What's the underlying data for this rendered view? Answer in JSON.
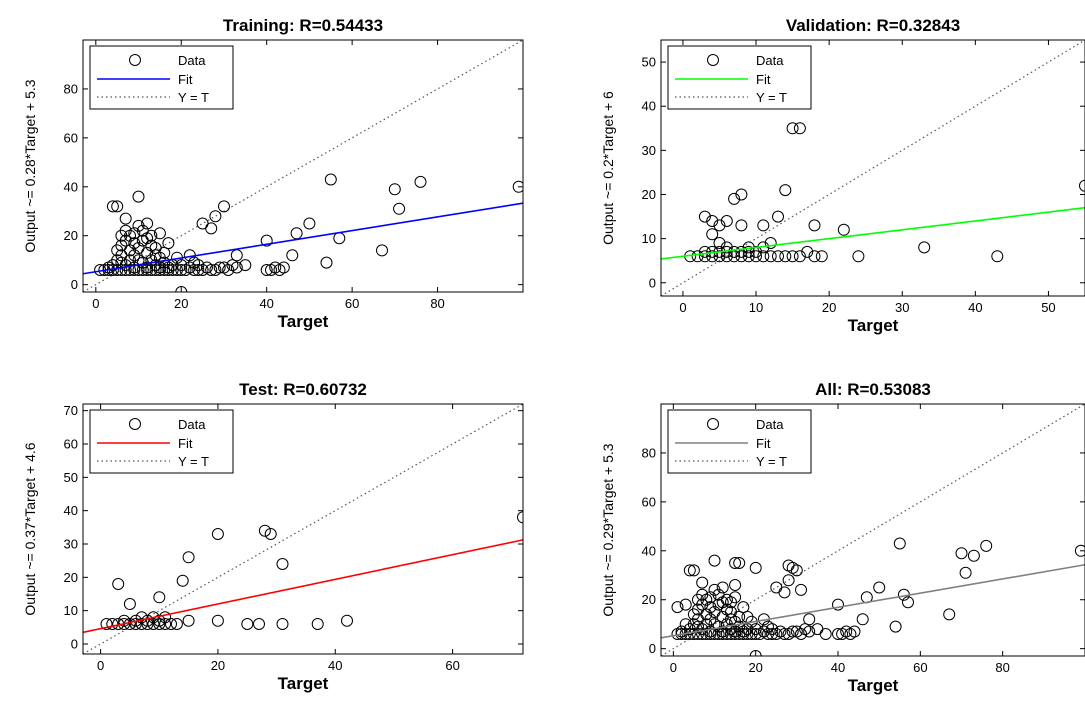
{
  "chart_data": [
    {
      "type": "scatter",
      "title": "Training: R=0.54433",
      "xlabel": "Target",
      "ylabel": "Output ~= 0.28*Target + 5.3",
      "xlim": [
        -3,
        100
      ],
      "ylim": [
        -3,
        100
      ],
      "xticks": [
        0,
        20,
        40,
        60,
        80
      ],
      "yticks": [
        0,
        20,
        40,
        60,
        80
      ],
      "grid": false,
      "legend_position": "top-left",
      "legend": [
        "Data",
        "Fit",
        "Y = T"
      ],
      "fit": {
        "slope": 0.28,
        "intercept": 5.3,
        "color": "#0000ff"
      },
      "points": [
        [
          1,
          6
        ],
        [
          2,
          6
        ],
        [
          3,
          6
        ],
        [
          3,
          7
        ],
        [
          4,
          6
        ],
        [
          4,
          8
        ],
        [
          4,
          32
        ],
        [
          5,
          6
        ],
        [
          5,
          10
        ],
        [
          5,
          14
        ],
        [
          5,
          32
        ],
        [
          6,
          6
        ],
        [
          6,
          9
        ],
        [
          6,
          12
        ],
        [
          6,
          16
        ],
        [
          6,
          20
        ],
        [
          7,
          6
        ],
        [
          7,
          8
        ],
        [
          7,
          18
        ],
        [
          7,
          22
        ],
        [
          7,
          27
        ],
        [
          8,
          6
        ],
        [
          8,
          10
        ],
        [
          8,
          14
        ],
        [
          8,
          20
        ],
        [
          9,
          6
        ],
        [
          9,
          7
        ],
        [
          9,
          12
        ],
        [
          9,
          17
        ],
        [
          9,
          21
        ],
        [
          10,
          6
        ],
        [
          10,
          10
        ],
        [
          10,
          15
        ],
        [
          10,
          24
        ],
        [
          10,
          36
        ],
        [
          11,
          6
        ],
        [
          11,
          9
        ],
        [
          11,
          18
        ],
        [
          11,
          22
        ],
        [
          12,
          6
        ],
        [
          12,
          7
        ],
        [
          12,
          13
        ],
        [
          12,
          19
        ],
        [
          12,
          25
        ],
        [
          13,
          6
        ],
        [
          13,
          10
        ],
        [
          13,
          16
        ],
        [
          13,
          20
        ],
        [
          14,
          6
        ],
        [
          14,
          8
        ],
        [
          14,
          12
        ],
        [
          14,
          15
        ],
        [
          15,
          6
        ],
        [
          15,
          7
        ],
        [
          15,
          11
        ],
        [
          15,
          21
        ],
        [
          16,
          6
        ],
        [
          16,
          9
        ],
        [
          16,
          13
        ],
        [
          17,
          6
        ],
        [
          17,
          7
        ],
        [
          17,
          17
        ],
        [
          18,
          6
        ],
        [
          18,
          8
        ],
        [
          19,
          6
        ],
        [
          19,
          11
        ],
        [
          20,
          -3
        ],
        [
          20,
          6
        ],
        [
          20,
          8
        ],
        [
          21,
          6
        ],
        [
          22,
          7
        ],
        [
          22,
          12
        ],
        [
          23,
          6
        ],
        [
          23,
          9
        ],
        [
          24,
          6
        ],
        [
          24,
          8
        ],
        [
          25,
          6
        ],
        [
          25,
          25
        ],
        [
          26,
          7
        ],
        [
          27,
          6
        ],
        [
          27,
          23
        ],
        [
          28,
          6
        ],
        [
          28,
          28
        ],
        [
          29,
          7
        ],
        [
          30,
          7
        ],
        [
          30,
          32
        ],
        [
          31,
          6
        ],
        [
          32,
          8
        ],
        [
          33,
          7
        ],
        [
          33,
          12
        ],
        [
          35,
          8
        ],
        [
          40,
          6
        ],
        [
          40,
          18
        ],
        [
          41,
          6
        ],
        [
          42,
          7
        ],
        [
          43,
          6
        ],
        [
          44,
          7
        ],
        [
          46,
          12
        ],
        [
          47,
          21
        ],
        [
          50,
          25
        ],
        [
          54,
          9
        ],
        [
          55,
          43
        ],
        [
          57,
          19
        ],
        [
          67,
          14
        ],
        [
          70,
          39
        ],
        [
          71,
          31
        ],
        [
          76,
          42
        ],
        [
          99,
          40
        ]
      ]
    },
    {
      "type": "scatter",
      "title": "Validation: R=0.32843",
      "xlabel": "Target",
      "ylabel": "Output ~= 0.2*Target + 6",
      "xlim": [
        -3,
        55
      ],
      "ylim": [
        -3,
        55
      ],
      "xticks": [
        0,
        10,
        20,
        30,
        40,
        50
      ],
      "yticks": [
        0,
        10,
        20,
        30,
        40,
        50
      ],
      "grid": false,
      "legend_position": "top-left",
      "legend": [
        "Data",
        "Fit",
        "Y = T"
      ],
      "fit": {
        "slope": 0.2,
        "intercept": 6,
        "color": "#00ff00"
      },
      "points": [
        [
          1,
          6
        ],
        [
          2,
          6
        ],
        [
          3,
          6
        ],
        [
          3,
          7
        ],
        [
          3,
          15
        ],
        [
          4,
          6
        ],
        [
          4,
          7
        ],
        [
          4,
          11
        ],
        [
          4,
          14
        ],
        [
          5,
          6
        ],
        [
          5,
          7
        ],
        [
          5,
          9
        ],
        [
          5,
          13
        ],
        [
          6,
          6
        ],
        [
          6,
          7
        ],
        [
          6,
          8
        ],
        [
          6,
          14
        ],
        [
          7,
          6
        ],
        [
          7,
          7
        ],
        [
          7,
          19
        ],
        [
          8,
          6
        ],
        [
          8,
          7
        ],
        [
          8,
          20
        ],
        [
          8,
          13
        ],
        [
          9,
          6
        ],
        [
          9,
          7
        ],
        [
          9,
          8
        ],
        [
          10,
          6
        ],
        [
          10,
          7
        ],
        [
          11,
          6
        ],
        [
          11,
          8
        ],
        [
          11,
          13
        ],
        [
          12,
          6
        ],
        [
          12,
          9
        ],
        [
          13,
          6
        ],
        [
          13,
          15
        ],
        [
          14,
          6
        ],
        [
          14,
          21
        ],
        [
          15,
          6
        ],
        [
          15,
          35
        ],
        [
          16,
          6
        ],
        [
          16,
          35
        ],
        [
          17,
          7
        ],
        [
          18,
          6
        ],
        [
          18,
          13
        ],
        [
          19,
          6
        ],
        [
          22,
          12
        ],
        [
          24,
          6
        ],
        [
          33,
          8
        ],
        [
          43,
          6
        ],
        [
          55,
          22
        ]
      ]
    },
    {
      "type": "scatter",
      "title": "Test: R=0.60732",
      "xlabel": "Target",
      "ylabel": "Output ~= 0.37*Target + 4.6",
      "xlim": [
        -3,
        72
      ],
      "ylim": [
        -3,
        72
      ],
      "xticks": [
        0,
        20,
        40,
        60
      ],
      "yticks": [
        0,
        10,
        20,
        30,
        40,
        50,
        60,
        70
      ],
      "grid": false,
      "legend_position": "top-left",
      "legend": [
        "Data",
        "Fit",
        "Y = T"
      ],
      "fit": {
        "slope": 0.37,
        "intercept": 4.6,
        "color": "#ff0000"
      },
      "points": [
        [
          1,
          6
        ],
        [
          2,
          6
        ],
        [
          3,
          6
        ],
        [
          3,
          18
        ],
        [
          4,
          6
        ],
        [
          4,
          7
        ],
        [
          5,
          6
        ],
        [
          5,
          12
        ],
        [
          6,
          6
        ],
        [
          6,
          7
        ],
        [
          7,
          6
        ],
        [
          7,
          8
        ],
        [
          8,
          6
        ],
        [
          8,
          7
        ],
        [
          9,
          6
        ],
        [
          9,
          8
        ],
        [
          10,
          6
        ],
        [
          10,
          7
        ],
        [
          10,
          14
        ],
        [
          11,
          6
        ],
        [
          11,
          8
        ],
        [
          12,
          6
        ],
        [
          13,
          6
        ],
        [
          14,
          19
        ],
        [
          15,
          7
        ],
        [
          15,
          26
        ],
        [
          20,
          7
        ],
        [
          20,
          33
        ],
        [
          25,
          6
        ],
        [
          27,
          6
        ],
        [
          28,
          34
        ],
        [
          29,
          33
        ],
        [
          31,
          6
        ],
        [
          31,
          24
        ],
        [
          37,
          6
        ],
        [
          42,
          7
        ],
        [
          72,
          38
        ]
      ]
    },
    {
      "type": "scatter",
      "title": "All: R=0.53083",
      "xlabel": "Target",
      "ylabel": "Output ~= 0.29*Target + 5.3",
      "xlim": [
        -3,
        100
      ],
      "ylim": [
        -3,
        100
      ],
      "xticks": [
        0,
        20,
        40,
        60,
        80
      ],
      "yticks": [
        0,
        20,
        40,
        60,
        80
      ],
      "grid": false,
      "legend_position": "top-left",
      "legend": [
        "Data",
        "Fit",
        "Y = T"
      ],
      "fit": {
        "slope": 0.29,
        "intercept": 5.3,
        "color": "#808080"
      },
      "points": [
        [
          1,
          6
        ],
        [
          1,
          17
        ],
        [
          2,
          6
        ],
        [
          2,
          7
        ],
        [
          3,
          6
        ],
        [
          3,
          10
        ],
        [
          3,
          18
        ],
        [
          4,
          6
        ],
        [
          4,
          8
        ],
        [
          4,
          32
        ],
        [
          5,
          6
        ],
        [
          5,
          10
        ],
        [
          5,
          14
        ],
        [
          5,
          32
        ],
        [
          6,
          6
        ],
        [
          6,
          9
        ],
        [
          6,
          12
        ],
        [
          6,
          16
        ],
        [
          6,
          20
        ],
        [
          7,
          6
        ],
        [
          7,
          8
        ],
        [
          7,
          18
        ],
        [
          7,
          22
        ],
        [
          7,
          27
        ],
        [
          8,
          6
        ],
        [
          8,
          10
        ],
        [
          8,
          14
        ],
        [
          8,
          20
        ],
        [
          9,
          6
        ],
        [
          9,
          7
        ],
        [
          9,
          12
        ],
        [
          9,
          17
        ],
        [
          9,
          21
        ],
        [
          10,
          6
        ],
        [
          10,
          10
        ],
        [
          10,
          15
        ],
        [
          10,
          24
        ],
        [
          10,
          36
        ],
        [
          11,
          6
        ],
        [
          11,
          9
        ],
        [
          11,
          18
        ],
        [
          11,
          22
        ],
        [
          12,
          6
        ],
        [
          12,
          7
        ],
        [
          12,
          13
        ],
        [
          12,
          19
        ],
        [
          12,
          25
        ],
        [
          13,
          6
        ],
        [
          13,
          10
        ],
        [
          13,
          16
        ],
        [
          13,
          20
        ],
        [
          14,
          6
        ],
        [
          14,
          8
        ],
        [
          14,
          12
        ],
        [
          14,
          15
        ],
        [
          14,
          19
        ],
        [
          15,
          6
        ],
        [
          15,
          7
        ],
        [
          15,
          11
        ],
        [
          15,
          21
        ],
        [
          15,
          26
        ],
        [
          15,
          35
        ],
        [
          16,
          6
        ],
        [
          16,
          9
        ],
        [
          16,
          13
        ],
        [
          16,
          35
        ],
        [
          17,
          6
        ],
        [
          17,
          7
        ],
        [
          17,
          17
        ],
        [
          18,
          6
        ],
        [
          18,
          8
        ],
        [
          18,
          13
        ],
        [
          19,
          6
        ],
        [
          19,
          11
        ],
        [
          20,
          -3
        ],
        [
          20,
          6
        ],
        [
          20,
          8
        ],
        [
          20,
          33
        ],
        [
          21,
          6
        ],
        [
          22,
          7
        ],
        [
          22,
          12
        ],
        [
          23,
          6
        ],
        [
          23,
          9
        ],
        [
          24,
          6
        ],
        [
          24,
          8
        ],
        [
          25,
          6
        ],
        [
          25,
          25
        ],
        [
          26,
          7
        ],
        [
          27,
          6
        ],
        [
          27,
          23
        ],
        [
          28,
          6
        ],
        [
          28,
          28
        ],
        [
          28,
          34
        ],
        [
          29,
          7
        ],
        [
          29,
          33
        ],
        [
          30,
          7
        ],
        [
          30,
          32
        ],
        [
          31,
          6
        ],
        [
          31,
          24
        ],
        [
          32,
          8
        ],
        [
          33,
          7
        ],
        [
          33,
          12
        ],
        [
          35,
          8
        ],
        [
          37,
          6
        ],
        [
          40,
          6
        ],
        [
          40,
          18
        ],
        [
          41,
          6
        ],
        [
          42,
          7
        ],
        [
          43,
          6
        ],
        [
          44,
          7
        ],
        [
          46,
          12
        ],
        [
          47,
          21
        ],
        [
          50,
          25
        ],
        [
          54,
          9
        ],
        [
          55,
          43
        ],
        [
          56,
          22
        ],
        [
          57,
          19
        ],
        [
          67,
          14
        ],
        [
          70,
          39
        ],
        [
          71,
          31
        ],
        [
          73,
          38
        ],
        [
          76,
          42
        ],
        [
          99,
          40
        ]
      ]
    }
  ]
}
